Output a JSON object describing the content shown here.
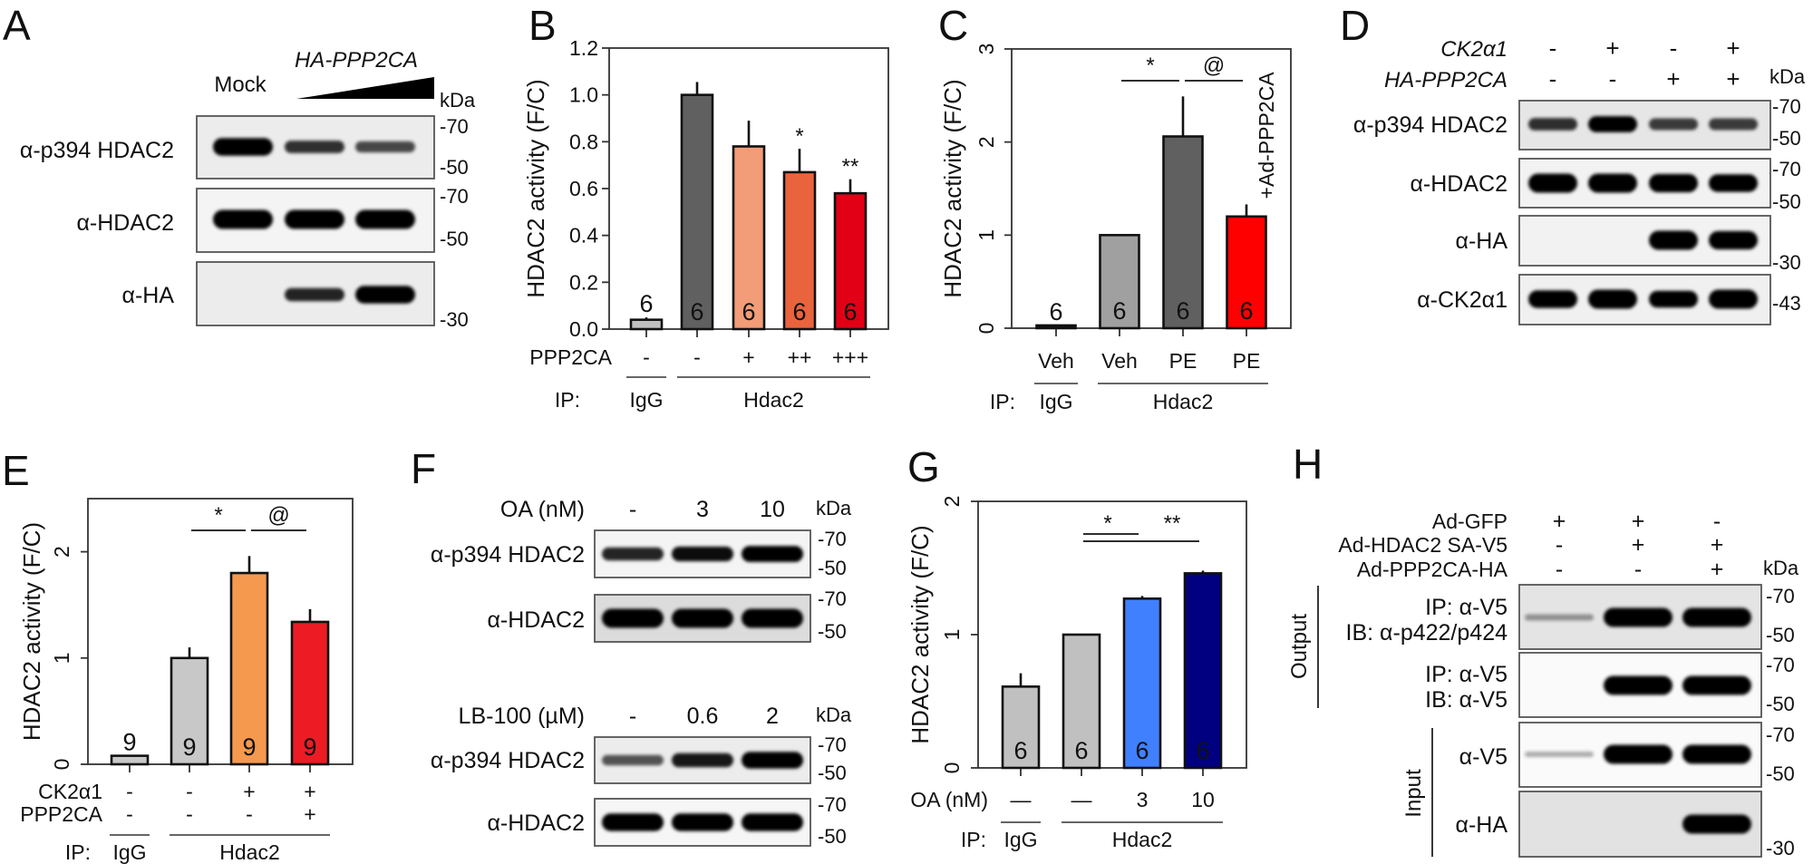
{
  "A": {
    "letter": "A",
    "mock": "Mock",
    "gene": "HA-PPP2CA",
    "kda": "kDa",
    "rows": [
      {
        "label": "α-p394 HDAC2",
        "bands": [
          0.9,
          0.55,
          0.45
        ],
        "markers": [
          "-70",
          "-50"
        ]
      },
      {
        "label": "α-HDAC2",
        "bands": [
          1,
          1,
          1
        ],
        "markers": [
          "-70",
          "-50"
        ]
      },
      {
        "label": "α-HA",
        "bands": [
          0,
          0.6,
          0.9
        ],
        "markers": [
          "-30"
        ]
      }
    ]
  },
  "D": {
    "letter": "D",
    "kda": "kDa",
    "conditions": [
      {
        "label": "CK2α1",
        "values": [
          "-",
          "+",
          "-",
          "+"
        ]
      },
      {
        "label": "HA-PPP2CA",
        "values": [
          "-",
          "-",
          "+",
          "+"
        ]
      }
    ],
    "rows": [
      {
        "label": "α-p394 HDAC2",
        "bands": [
          0.55,
          0.8,
          0.5,
          0.5
        ],
        "markers": [
          "-70",
          "-50"
        ]
      },
      {
        "label": "α-HDAC2",
        "bands": [
          1,
          1,
          0.95,
          0.9
        ],
        "markers": [
          "-70",
          "-50"
        ]
      },
      {
        "label": "α-HA",
        "bands": [
          0,
          0,
          1,
          0.95
        ],
        "markers": [
          "-30"
        ]
      },
      {
        "label": "α-CK2α1",
        "bands": [
          0.9,
          1,
          0.85,
          1
        ],
        "markers": [
          "-43"
        ]
      }
    ]
  },
  "F": {
    "letter": "F",
    "blots": [
      {
        "treatment": "OA (nM)",
        "lanes": [
          "-",
          "3",
          "10"
        ],
        "kda": "kDa",
        "rows": [
          {
            "label": "α-p394 HDAC2",
            "bands": [
              0.6,
              0.7,
              0.8
            ],
            "markers": [
              "-70",
              "-50"
            ]
          },
          {
            "label": "α-HDAC2",
            "bands": [
              1,
              1,
              1
            ],
            "markers": [
              "-70",
              "-50"
            ]
          }
        ]
      },
      {
        "treatment": "LB-100 (µM)",
        "lanes": [
          "-",
          "0.6",
          "2"
        ],
        "kda": "kDa",
        "rows": [
          {
            "label": "α-p394 HDAC2",
            "bands": [
              0.4,
              0.65,
              0.85
            ],
            "markers": [
              "-70",
              "-50"
            ]
          },
          {
            "label": "α-HDAC2",
            "bands": [
              0.9,
              0.9,
              0.9
            ],
            "markers": [
              "-70",
              "-50"
            ]
          }
        ]
      }
    ]
  },
  "H": {
    "letter": "H",
    "kda": "kDa",
    "conditions": [
      {
        "label": "Ad-GFP",
        "values": [
          "+",
          "+",
          "-"
        ]
      },
      {
        "label": "Ad-HDAC2 SA-V5",
        "values": [
          "-",
          "+",
          "+"
        ]
      },
      {
        "label": "Ad-PPP2CA-HA",
        "values": [
          "-",
          "-",
          "+"
        ]
      }
    ],
    "groups": {
      "output": "Output",
      "input": "Input"
    },
    "rows": [
      {
        "label_lines": [
          "IP: α-V5",
          "IB: α-p422/p424"
        ],
        "bands": [
          0.12,
          1,
          1
        ],
        "markers": [
          "-70",
          "-50"
        ]
      },
      {
        "label_lines": [
          "IP: α-V5",
          "IB: α-V5"
        ],
        "bands": [
          0,
          1,
          1
        ],
        "markers": [
          "-70",
          "-50"
        ]
      },
      {
        "label_lines": [
          "α-V5"
        ],
        "bands": [
          0.06,
          1,
          1
        ],
        "markers": [
          "-70",
          "-50"
        ]
      },
      {
        "label_lines": [
          "α-HA"
        ],
        "bands": [
          0,
          0,
          1
        ],
        "markers": [
          "-30"
        ]
      }
    ]
  },
  "chart_data": [
    {
      "letter": "B",
      "type": "bar",
      "title": "",
      "xlabel": "",
      "ylabel": "HDAC2 activity (F/C)",
      "ylim": [
        0,
        1.2
      ],
      "yticks": [
        0,
        0.2,
        0.4,
        0.6,
        0.8,
        1.0,
        1.2
      ],
      "ytick_labels": [
        "0.0",
        "0.2",
        "0.4",
        "0.6",
        "0.8",
        "1.0",
        "1.2"
      ],
      "values": [
        0.04,
        1.0,
        0.78,
        0.67,
        0.58
      ],
      "errors": [
        0.01,
        0.055,
        0.11,
        0.1,
        0.06
      ],
      "n": [
        "6",
        "6",
        "6",
        "6",
        "6"
      ],
      "n_inside": [
        false,
        true,
        true,
        true,
        true
      ],
      "n_colors": [
        "#111111",
        "#ffffff",
        "#ffffff",
        "#ffffff",
        "#ffffff"
      ],
      "bar_colors": [
        "#c0c0c0",
        "#606060",
        "#f29c78",
        "#e9643d",
        "#e10016"
      ],
      "bar_marks": [
        "",
        "",
        "",
        "*",
        "**"
      ],
      "conditions": [
        {
          "label": "PPP2CA",
          "values": [
            "-",
            "-",
            "+",
            "++",
            "+++"
          ]
        }
      ],
      "ip": {
        "label": "IP:",
        "groups": [
          {
            "label": "IgG",
            "span": [
              0,
              0
            ]
          },
          {
            "label": "Hdac2",
            "span": [
              1,
              4
            ]
          }
        ]
      },
      "sig": []
    },
    {
      "letter": "C",
      "type": "bar",
      "title": "",
      "xlabel": "",
      "ylabel": "HDAC2 activity (F/C)",
      "ylim": [
        0,
        3
      ],
      "yticks": [
        0,
        1,
        2,
        3
      ],
      "ytick_labels": [
        "0",
        "1",
        "2",
        "3"
      ],
      "values": [
        0.03,
        1.0,
        2.06,
        1.2
      ],
      "errors": [
        0,
        0,
        0.43,
        0.13
      ],
      "n": [
        "6",
        "6",
        "6",
        "6"
      ],
      "n_inside": [
        false,
        true,
        true,
        true
      ],
      "n_colors": [
        "#111111",
        "#ffffff",
        "#ffffff",
        "#ffffff"
      ],
      "bar_colors": [
        "#111111",
        "#a0a0a0",
        "#606060",
        "#ff0000"
      ],
      "bar_note": {
        "index": 3,
        "text": "+Ad-PPP2CA"
      },
      "conditions": [
        {
          "label": "",
          "values": [
            "Veh",
            "Veh",
            "PE",
            "PE"
          ]
        }
      ],
      "ip": {
        "label": "IP:",
        "groups": [
          {
            "label": "IgG",
            "span": [
              0,
              0
            ]
          },
          {
            "label": "Hdac2",
            "span": [
              1,
              3
            ]
          }
        ]
      },
      "sig": [
        {
          "text": "*",
          "from": 1,
          "to": 2
        },
        {
          "text": "@",
          "from": 2,
          "to": 3
        }
      ]
    },
    {
      "letter": "E",
      "type": "bar",
      "title": "",
      "xlabel": "",
      "ylabel": "HDAC2 activity (F/C)",
      "ylim": [
        0,
        2.5
      ],
      "yticks": [
        0,
        1,
        2
      ],
      "ytick_labels": [
        "0",
        "1",
        "2"
      ],
      "values": [
        0.08,
        1.0,
        1.8,
        1.34
      ],
      "errors": [
        0,
        0.1,
        0.16,
        0.12
      ],
      "n": [
        "9",
        "9",
        "9",
        "9"
      ],
      "n_inside": [
        false,
        true,
        true,
        true
      ],
      "n_colors": [
        "#111111",
        "#111111",
        "#ffffff",
        "#ffffff"
      ],
      "bar_colors": [
        "#c8c8c8",
        "#c8c8c8",
        "#f5994f",
        "#ed1c24"
      ],
      "conditions": [
        {
          "label": "CK2α1",
          "values": [
            "-",
            "-",
            "+",
            "+"
          ]
        },
        {
          "label": "PPP2CA",
          "values": [
            "-",
            "-",
            "-",
            "+"
          ]
        }
      ],
      "ip": {
        "label": "IP:",
        "groups": [
          {
            "label": "IgG",
            "span": [
              0,
              0
            ]
          },
          {
            "label": "Hdac2",
            "span": [
              1,
              3
            ]
          }
        ]
      },
      "sig": [
        {
          "text": "*",
          "from": 1,
          "to": 2
        },
        {
          "text": "@",
          "from": 2,
          "to": 3
        }
      ]
    },
    {
      "letter": "G",
      "type": "bar",
      "title": "",
      "xlabel": "",
      "ylabel": "HDAC2 activity (F/C)",
      "ylim": [
        0,
        2
      ],
      "yticks": [
        0,
        1,
        2
      ],
      "ytick_labels": [
        "0",
        "1",
        "2"
      ],
      "values": [
        0.61,
        1.0,
        1.27,
        1.46
      ],
      "errors": [
        0.1,
        0,
        0.02,
        0.02
      ],
      "n": [
        "6",
        "6",
        "6",
        "6"
      ],
      "n_inside": [
        true,
        true,
        true,
        true
      ],
      "n_colors": [
        "#eeeeee",
        "#eeeeee",
        "#ffffff",
        "#ffffff"
      ],
      "bar_colors": [
        "#c0c0c0",
        "#c0c0c0",
        "#4080ff",
        "#000080"
      ],
      "conditions": [
        {
          "label": "OA (nM)",
          "values": [
            "—",
            "—",
            "3",
            "10"
          ]
        }
      ],
      "ip": {
        "label": "IP:",
        "groups": [
          {
            "label": "IgG",
            "span": [
              0,
              0
            ]
          },
          {
            "label": "Hdac2",
            "span": [
              1,
              3
            ]
          }
        ]
      },
      "sig": [
        {
          "text": "*",
          "from": 1,
          "to": 2
        },
        {
          "text": "**",
          "from": 1,
          "to": 3
        }
      ]
    }
  ]
}
